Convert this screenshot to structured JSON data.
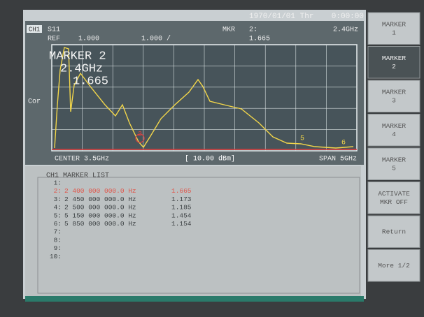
{
  "header": {
    "date": "1970/01/01 Thr",
    "time": "0:00:00"
  },
  "status": {
    "channel": "CH1",
    "parameter": "S11",
    "ref_label": "REF",
    "ref_value": "1.000",
    "scale": "1.000 /",
    "marker_label": "MKR",
    "marker_number": "2:",
    "marker_freq": "2.4GHz",
    "marker_value": "1.665"
  },
  "readout": {
    "title": "MARKER 2",
    "freq": "2.4GHz",
    "value": "1.665"
  },
  "side_label": "Cor",
  "trace_markers": [
    "2",
    "5",
    "6"
  ],
  "footer": {
    "center": "CENTER 3.5GHz",
    "power": "[ 10.00 dBm]",
    "span": "SPAN 5GHz"
  },
  "marker_list": {
    "title": "CH1 MARKER LIST",
    "rows": [
      {
        "index": "1:"
      },
      {
        "index": "2:",
        "freq": "2 400 000 000.0 Hz",
        "value": "1.665"
      },
      {
        "index": "3:",
        "freq": "2 450 000 000.0 Hz",
        "value": "1.173"
      },
      {
        "index": "4:",
        "freq": "2 500 000 000.0 Hz",
        "value": "1.185"
      },
      {
        "index": "5:",
        "freq": "5 150 000 000.0 Hz",
        "value": "1.454"
      },
      {
        "index": "6:",
        "freq": "5 850 000 000.0 Hz",
        "value": "1.154"
      },
      {
        "index": "7:"
      },
      {
        "index": "8:"
      },
      {
        "index": "9:"
      },
      {
        "index": "10:"
      }
    ]
  },
  "softkeys": [
    [
      "MARKER",
      "1"
    ],
    [
      "MARKER",
      "2"
    ],
    [
      "MARKER",
      "3"
    ],
    [
      "MARKER",
      "4"
    ],
    [
      "MARKER",
      "5"
    ],
    [
      "ACTIVATE",
      "MKR OFF"
    ],
    [
      "Return"
    ],
    [
      "More 1/2"
    ]
  ]
}
